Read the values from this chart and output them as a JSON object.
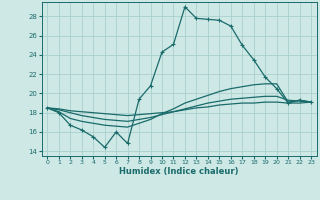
{
  "xlabel": "Humidex (Indice chaleur)",
  "xlim": [
    -0.5,
    23.5
  ],
  "ylim": [
    13.5,
    29.5
  ],
  "xticks": [
    0,
    1,
    2,
    3,
    4,
    5,
    6,
    7,
    8,
    9,
    10,
    11,
    12,
    13,
    14,
    15,
    16,
    17,
    18,
    19,
    20,
    21,
    22,
    23
  ],
  "yticks": [
    14,
    16,
    18,
    20,
    22,
    24,
    26,
    28
  ],
  "bg_color": "#cde8e5",
  "grid_color": "#aacfcc",
  "line_color": "#1a6b6b",
  "lines": [
    {
      "x": [
        0,
        1,
        2,
        3,
        4,
        5,
        6,
        7,
        8,
        9,
        10,
        11,
        12,
        13,
        14,
        15,
        16,
        17,
        18,
        19,
        20,
        21,
        22,
        23
      ],
      "y": [
        18.5,
        18.0,
        16.7,
        16.2,
        15.5,
        14.4,
        16.0,
        14.8,
        19.4,
        20.8,
        24.3,
        25.1,
        29.0,
        27.8,
        27.7,
        27.6,
        27.0,
        25.0,
        23.5,
        21.7,
        20.5,
        19.0,
        19.3,
        19.1
      ],
      "marker": true
    },
    {
      "x": [
        0,
        1,
        2,
        3,
        4,
        5,
        6,
        7,
        8,
        9,
        10,
        11,
        12,
        13,
        14,
        15,
        16,
        17,
        18,
        19,
        20,
        21,
        22,
        23
      ],
      "y": [
        18.5,
        18.1,
        17.4,
        17.1,
        16.9,
        16.7,
        16.6,
        16.5,
        16.9,
        17.3,
        17.9,
        18.4,
        19.0,
        19.4,
        19.8,
        20.2,
        20.5,
        20.7,
        20.9,
        21.0,
        21.0,
        19.1,
        19.3,
        19.1
      ],
      "marker": false
    },
    {
      "x": [
        0,
        1,
        2,
        3,
        4,
        5,
        6,
        7,
        8,
        9,
        10,
        11,
        12,
        13,
        14,
        15,
        16,
        17,
        18,
        19,
        20,
        21,
        22,
        23
      ],
      "y": [
        18.5,
        18.3,
        18.0,
        17.7,
        17.5,
        17.3,
        17.2,
        17.1,
        17.3,
        17.5,
        17.8,
        18.1,
        18.4,
        18.7,
        19.0,
        19.2,
        19.4,
        19.5,
        19.6,
        19.7,
        19.7,
        19.3,
        19.2,
        19.1
      ],
      "marker": false
    },
    {
      "x": [
        0,
        1,
        2,
        3,
        4,
        5,
        6,
        7,
        8,
        9,
        10,
        11,
        12,
        13,
        14,
        15,
        16,
        17,
        18,
        19,
        20,
        21,
        22,
        23
      ],
      "y": [
        18.5,
        18.4,
        18.2,
        18.1,
        18.0,
        17.9,
        17.8,
        17.7,
        17.8,
        17.9,
        18.0,
        18.1,
        18.3,
        18.5,
        18.6,
        18.8,
        18.9,
        19.0,
        19.0,
        19.1,
        19.1,
        19.0,
        19.0,
        19.1
      ],
      "marker": false
    }
  ]
}
